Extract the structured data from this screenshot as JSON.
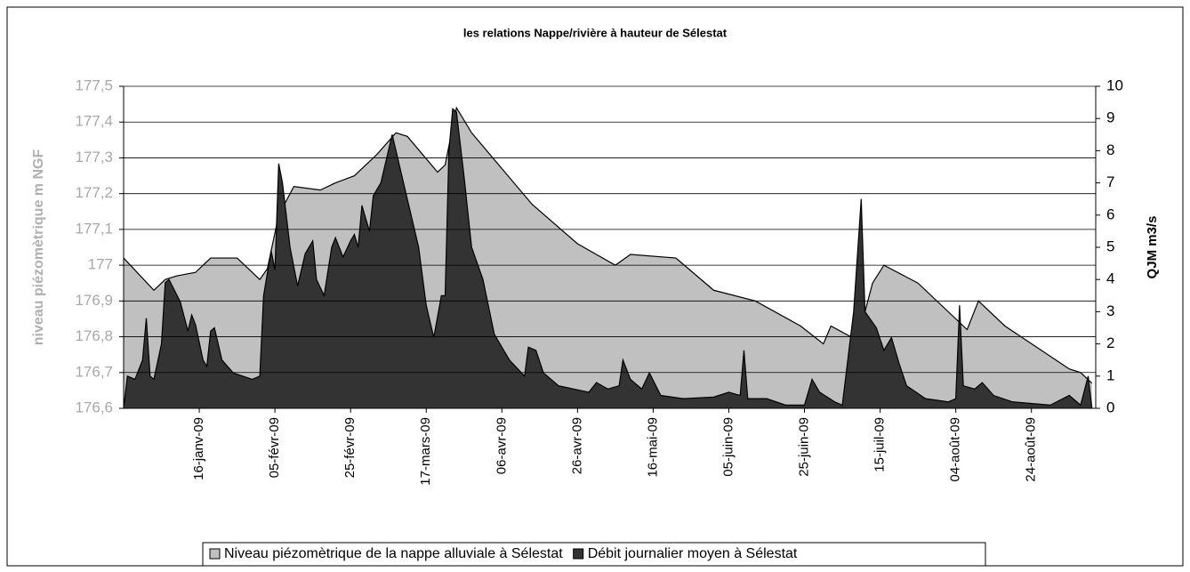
{
  "chart_data": {
    "type": "area",
    "title": "les relations Nappe/rivière à hauteur de Sélestat",
    "y_label": "niveau piézomètrique m NGF",
    "y2_label": "QJM m3/s",
    "grid": true,
    "legend": "bottom",
    "xlim": [
      0,
      257
    ],
    "xticks": [
      {
        "value": 20,
        "label": "16-janv-09"
      },
      {
        "value": 40,
        "label": "05-févr-09"
      },
      {
        "value": 60,
        "label": "25-févr-09"
      },
      {
        "value": 80,
        "label": "17-mars-09"
      },
      {
        "value": 100,
        "label": "06-avr-09"
      },
      {
        "value": 120,
        "label": "26-avr-09"
      },
      {
        "value": 140,
        "label": "16-mai-09"
      },
      {
        "value": 160,
        "label": "05-juin-09"
      },
      {
        "value": 180,
        "label": "25-juin-09"
      },
      {
        "value": 200,
        "label": "15-juil-09"
      },
      {
        "value": 220,
        "label": "04-août-09"
      },
      {
        "value": 240,
        "label": "24-août-09"
      }
    ],
    "ylim": [
      176.6,
      177.5
    ],
    "yticks": [
      {
        "value": 176.6,
        "label": "176,6"
      },
      {
        "value": 176.7,
        "label": "176,7"
      },
      {
        "value": 176.8,
        "label": "176,8"
      },
      {
        "value": 176.9,
        "label": "176,9"
      },
      177,
      {
        "value": 177.1,
        "label": "177,1"
      },
      {
        "value": 177.2,
        "label": "177,2"
      },
      {
        "value": 177.3,
        "label": "177,3"
      },
      {
        "value": 177.4,
        "label": "177,4"
      },
      {
        "value": 177.5,
        "label": "177,5"
      }
    ],
    "y2lim": [
      0,
      10
    ],
    "y2ticks": [
      0,
      1,
      2,
      3,
      4,
      5,
      6,
      7,
      8,
      9,
      10
    ],
    "series": [
      {
        "name": "Niveau piézomètrique de la nappe alluviale à Sélestat",
        "color": "#c0c0c0",
        "x": [
          0,
          8,
          11,
          14,
          19,
          23,
          30,
          36,
          38,
          41,
          45,
          52,
          56,
          61,
          67,
          72,
          75,
          83,
          85,
          88,
          92,
          100,
          108,
          120,
          130,
          134,
          146,
          156,
          167,
          179,
          185,
          187,
          194,
          198,
          201,
          210,
          223,
          226,
          233,
          250,
          253,
          256
        ],
        "values": [
          177.02,
          176.93,
          176.96,
          176.97,
          176.98,
          177.02,
          177.02,
          176.96,
          176.99,
          177.14,
          177.22,
          177.21,
          177.23,
          177.25,
          177.31,
          177.37,
          177.36,
          177.26,
          177.28,
          177.44,
          177.37,
          177.27,
          177.17,
          177.06,
          177.0,
          177.03,
          177.02,
          176.93,
          176.9,
          176.83,
          176.78,
          176.83,
          176.79,
          176.95,
          177.0,
          176.95,
          176.82,
          176.9,
          176.83,
          176.71,
          176.7,
          176.67
        ]
      },
      {
        "name": "Débit journalier moyen à Sélestat",
        "color": "#333333",
        "axis": "y2",
        "x": [
          0,
          1,
          3,
          5,
          6,
          7,
          8,
          10,
          11,
          12,
          15,
          17,
          18,
          19,
          21,
          22,
          23,
          24,
          26,
          29,
          34,
          36,
          37,
          39,
          40,
          41,
          42,
          44,
          46,
          48,
          50,
          51,
          53,
          55,
          56,
          58,
          60,
          61,
          62,
          63,
          65,
          66,
          68,
          71,
          74,
          78,
          80,
          82,
          84,
          85,
          86,
          87,
          88,
          90,
          92,
          95,
          98,
          102,
          106,
          107,
          109,
          111,
          115,
          119,
          123,
          125,
          128,
          131,
          132,
          134,
          137,
          139,
          142,
          148,
          156,
          160,
          163,
          164,
          165,
          170,
          175,
          180,
          182,
          184,
          188,
          190,
          193,
          195,
          196,
          199,
          201,
          203,
          205,
          207,
          212,
          218,
          220,
          221,
          222,
          225,
          227,
          230,
          235,
          245,
          250,
          253,
          255,
          256
        ],
        "values": [
          0,
          1.0,
          0.9,
          1.5,
          2.8,
          1.0,
          0.9,
          2.0,
          3.9,
          4.0,
          3.3,
          2.4,
          2.9,
          2.6,
          1.5,
          1.3,
          2.4,
          2.5,
          1.5,
          1.1,
          0.9,
          1.0,
          3.5,
          4.9,
          4.3,
          7.6,
          7.0,
          5.0,
          3.8,
          4.8,
          5.2,
          4.0,
          3.5,
          5.0,
          5.3,
          4.7,
          5.2,
          5.4,
          5.0,
          6.3,
          5.5,
          6.6,
          7.0,
          8.5,
          7.0,
          5.0,
          3.2,
          2.2,
          3.5,
          3.5,
          8.0,
          9.3,
          9.2,
          7.2,
          5.0,
          4.0,
          2.3,
          1.5,
          1.0,
          1.9,
          1.8,
          1.1,
          0.7,
          0.6,
          0.5,
          0.8,
          0.6,
          0.7,
          1.5,
          0.9,
          0.6,
          1.1,
          0.4,
          0.3,
          0.35,
          0.5,
          0.4,
          1.8,
          0.3,
          0.3,
          0.1,
          0.1,
          0.9,
          0.5,
          0.2,
          0.1,
          3.0,
          6.5,
          3.0,
          2.5,
          1.8,
          2.2,
          1.4,
          0.7,
          0.3,
          0.2,
          0.3,
          3.2,
          0.7,
          0.6,
          0.8,
          0.4,
          0.2,
          0.1,
          0.4,
          0.1,
          1.0,
          0
        ]
      }
    ]
  }
}
